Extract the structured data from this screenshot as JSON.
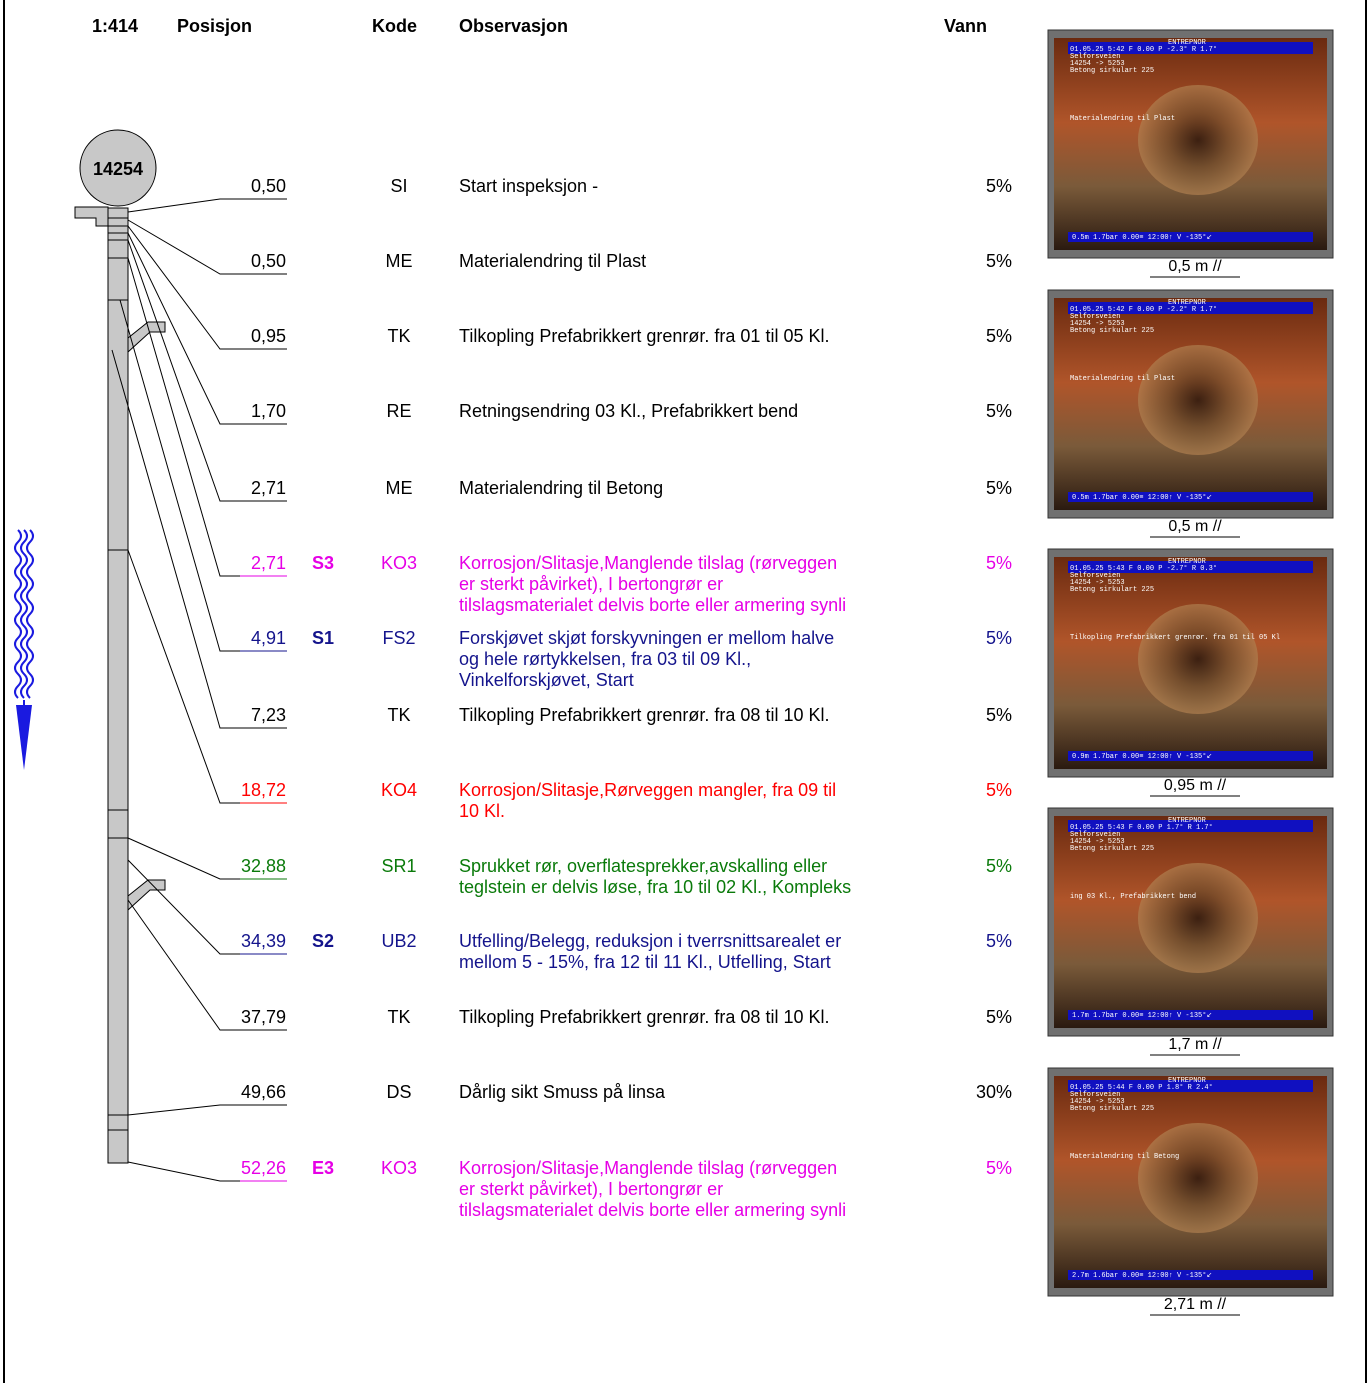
{
  "header": {
    "scale": "1:414",
    "position": "Posisjon",
    "code": "Kode",
    "observation": "Observasjon",
    "water": "Vann"
  },
  "node": {
    "label": "14254"
  },
  "rows": [
    {
      "position": "0,50",
      "code": "SI",
      "observation": [
        "Start inspeksjon -"
      ],
      "water": "5%",
      "color": "#000000"
    },
    {
      "position": "0,50",
      "code": "ME",
      "observation": [
        "Materialendring til Plast"
      ],
      "water": "5%",
      "color": "#000000"
    },
    {
      "position": "0,95",
      "code": "TK",
      "observation": [
        "Tilkopling Prefabrikkert grenrør. fra 01 til 05 Kl."
      ],
      "water": "5%",
      "color": "#000000"
    },
    {
      "position": "1,70",
      "code": "RE",
      "observation": [
        "Retningsendring  03 Kl., Prefabrikkert bend"
      ],
      "water": "5%",
      "color": "#000000"
    },
    {
      "position": "2,71",
      "code": "ME",
      "observation": [
        "Materialendring til Betong"
      ],
      "water": "5%",
      "color": "#000000"
    },
    {
      "position": "2,71",
      "grade": "S3",
      "code": "KO3",
      "observation": [
        "Korrosjon/Slitasje,Manglende tilslag (rørveggen",
        "er sterkt påvirket), I bertongrør er",
        "tilslagsmaterialet delvis borte eller armering synli"
      ],
      "water": "5%",
      "color": "#e600e6"
    },
    {
      "position": "4,91",
      "grade": "S1",
      "code": "FS2",
      "observation": [
        "Forskjøvet skjøt forskyvningen er mellom halve",
        "og hele rørtykkelsen, fra 03 til 09 Kl.,",
        "Vinkelforskjøvet, Start"
      ],
      "water": "5%",
      "color": "#14148c"
    },
    {
      "position": "7,23",
      "code": "TK",
      "observation": [
        "Tilkopling Prefabrikkert grenrør. fra 08 til 10 Kl."
      ],
      "water": "5%",
      "color": "#000000"
    },
    {
      "position": "18,72",
      "code": "KO4",
      "observation": [
        "Korrosjon/Slitasje,Rørveggen mangler, fra 09 til",
        "10 Kl."
      ],
      "water": "5%",
      "color": "#ff0000"
    },
    {
      "position": "32,88",
      "code": "SR1",
      "observation": [
        "Sprukket rør, overflatesprekker,avskalling eller",
        "teglstein er delvis løse, fra 10 til 02 Kl., Kompleks"
      ],
      "water": "5%",
      "color": "#0a7a0a"
    },
    {
      "position": "34,39",
      "grade": "S2",
      "code": "UB2",
      "observation": [
        "Utfelling/Belegg, reduksjon i tverrsnittsarealet er",
        "mellom  5 - 15%, fra 12 til 11 Kl., Utfelling, Start"
      ],
      "water": "5%",
      "color": "#14148c"
    },
    {
      "position": "37,79",
      "code": "TK",
      "observation": [
        "Tilkopling Prefabrikkert grenrør. fra 08 til 10 Kl."
      ],
      "water": "5%",
      "color": "#000000"
    },
    {
      "position": "49,66",
      "code": "DS",
      "observation": [
        "Dårlig sikt Smuss på linsa"
      ],
      "water": "30%",
      "color": "#000000"
    },
    {
      "position": "52,26",
      "grade": "E3",
      "code": "KO3",
      "observation": [
        "Korrosjon/Slitasje,Manglende tilslag (rørveggen",
        "er sterkt påvirket), I bertongrør er",
        "tilslagsmaterialet delvis borte eller armering synli"
      ],
      "water": "5%",
      "color": "#e600e6"
    }
  ],
  "photos": [
    {
      "caption": "0,5 m //",
      "osd": [
        "ENTREPNOR",
        "01.05.25     5:42  F  0.00   P  -2.3°  R  1.7°",
        "Selforsveien",
        "14254 -> 5253",
        "Betong sirkulart 225"
      ],
      "middle": "Materialendring til Plast",
      "bottom": "0.5m    1.7bar     0.00≡    12:00↑  V -135°↙"
    },
    {
      "caption": "0,5 m //",
      "osd": [
        "ENTREPNOR",
        "01.05.25     5:42  F  0.00   P  -2.2°  R  1.7°",
        "Selforsveien",
        "14254 -> 5253",
        "Betong sirkulart 225"
      ],
      "middle": "Materialendring til Plast",
      "bottom": "0.5m    1.7bar     0.00≡    12:00↑  V -135°↙"
    },
    {
      "caption": "0,95 m //",
      "osd": [
        "ENTREPNOR",
        "01.05.25     5:43  F  0.00   P  -2.7°  R  0.3°",
        "Selforsveien",
        "14254 -> 5253",
        "Betong sirkulart 225"
      ],
      "middle": "Tilkopling Prefabrikkert grenrør. fra 01 til 05 Kl",
      "bottom": "0.9m    1.7bar     0.00≡    12:00↑  V -135°↙"
    },
    {
      "caption": "1,7 m //",
      "osd": [
        "ENTREPNOR",
        "01.05.25     5:43  F  0.00   P  1.7°  R  1.7°",
        "Selforsveien",
        "14254 -> 5253",
        "Betong sirkulart 225"
      ],
      "middle": "ing  03 Kl., Prefabrikkert bend",
      "bottom": "1.7m    1.7bar     0.00≡    12:00↑  V -135°↙"
    },
    {
      "caption": "2,71 m //",
      "osd": [
        "ENTREPNOR",
        "01.05.25     5:44  F  0.00   P  1.8°  R  2.4°",
        "Selforsveien",
        "14254 -> 5253",
        "Betong sirkulart 225"
      ],
      "middle": "Materialendring til Betong",
      "bottom": "2.7m    1.6bar     0.00≡    12:00↑  V -135°↙"
    }
  ]
}
